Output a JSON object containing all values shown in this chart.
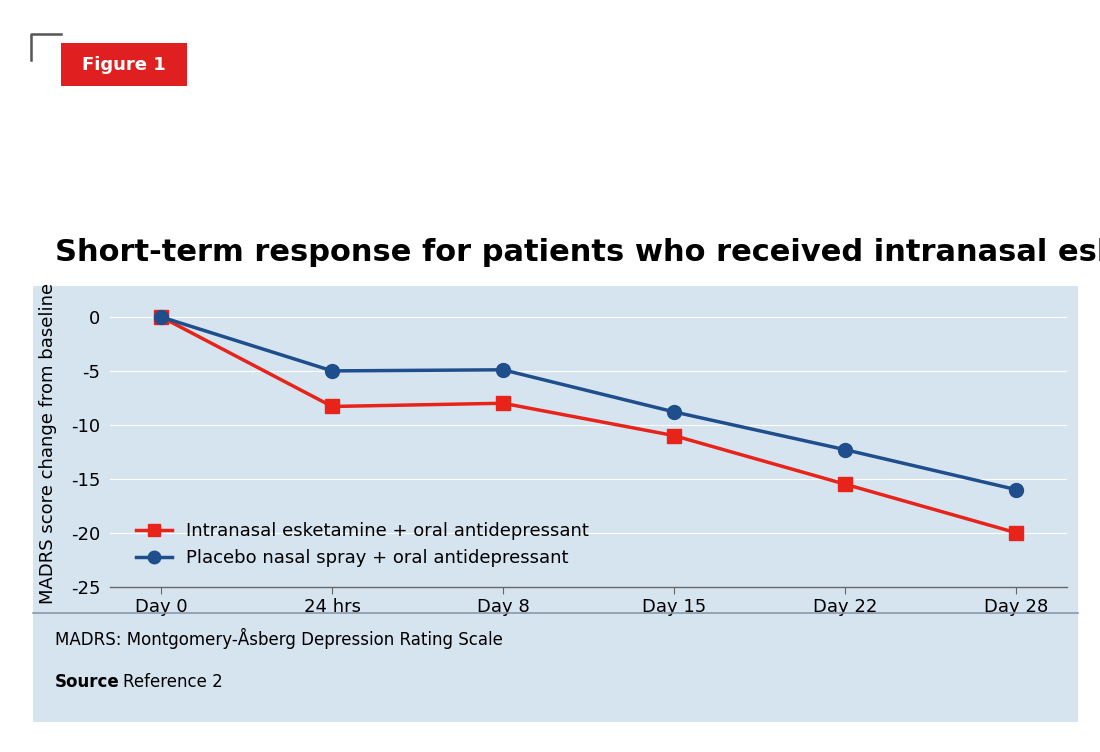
{
  "title": "Short-term response for patients who received intranasal esketamine",
  "figure_label": "Figure 1",
  "x_labels": [
    "Day 0",
    "24 hrs",
    "Day 8",
    "Day 15",
    "Day 22",
    "Day 28"
  ],
  "x_positions": [
    0,
    1,
    2,
    3,
    4,
    5
  ],
  "esketamine_values": [
    0,
    -8.3,
    -8.0,
    -11.0,
    -15.5,
    -20.0
  ],
  "placebo_values": [
    0,
    -5.0,
    -4.9,
    -8.8,
    -12.3,
    -16.0
  ],
  "esketamine_color": "#e8231a",
  "placebo_color": "#1f4e8c",
  "ylim": [
    -25,
    1.5
  ],
  "yticks": [
    0,
    -5,
    -10,
    -15,
    -20,
    -25
  ],
  "ylabel": "MADRS score change from baseline",
  "panel_bg_color": "#d6e4f0",
  "outer_bg_color": "#ffffff",
  "legend_label_esketamine": "Intranasal esketamine + oral antidepressant",
  "legend_label_placebo": "Placebo nasal spray + oral antidepressant",
  "footer_line1": "MADRS: Montgomery-Åsberg Depression Rating Scale",
  "footer_line2_bold": "Source",
  "footer_line2_normal": ": Reference 2",
  "line_width": 2.5,
  "marker_size": 10,
  "title_fontsize": 22,
  "axis_fontsize": 13,
  "tick_fontsize": 13,
  "legend_fontsize": 13,
  "footer_fontsize": 12,
  "fig_label_fontsize": 13,
  "separator_color": "#8899aa"
}
